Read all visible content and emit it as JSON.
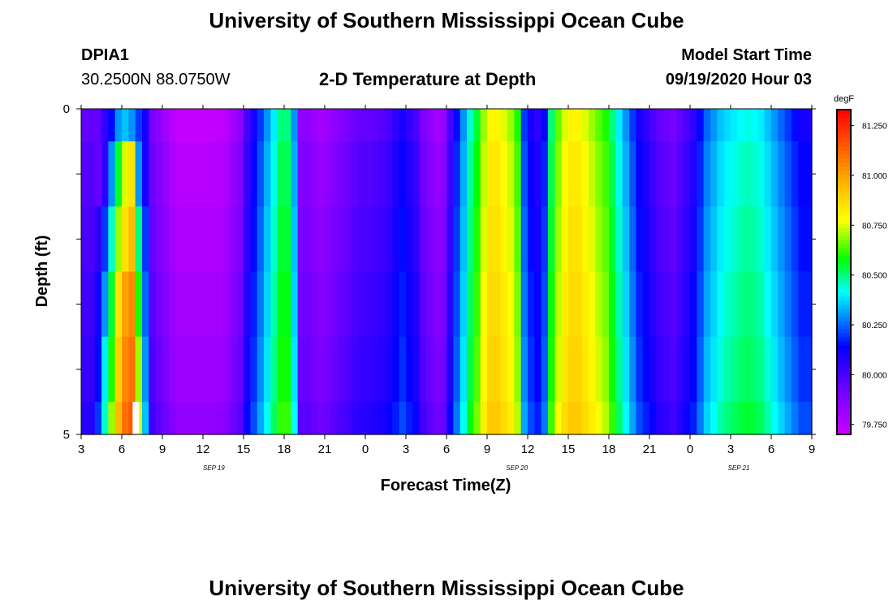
{
  "page_title": "University of Southern Mississippi Ocean Cube",
  "footer_title": "University of Southern Mississippi Ocean Cube",
  "station": {
    "id": "DPIA1",
    "location": "30.2500N 88.0750W"
  },
  "plot_title": "2-D Temperature at Depth",
  "model": {
    "label": "Model Start Time",
    "value": "09/19/2020 Hour 03"
  },
  "chart_data": {
    "type": "heatmap",
    "title": "2-D Temperature at Depth",
    "xlabel": "Forecast Time(Z)",
    "ylabel": "Depth (ft)",
    "x_tick_labels": [
      "3",
      "6",
      "9",
      "12",
      "15",
      "18",
      "21",
      "0",
      "3",
      "6",
      "9",
      "12",
      "15",
      "18",
      "21",
      "0",
      "3",
      "6",
      "9"
    ],
    "x_hours": [
      0,
      3,
      6,
      9,
      12,
      15,
      18,
      21,
      24,
      27,
      30,
      33,
      36,
      39,
      42,
      45,
      48,
      51,
      54
    ],
    "date_labels": [
      {
        "text": "SEP 19",
        "hour": 9.8
      },
      {
        "text": "SEP 20",
        "hour": 32.2
      },
      {
        "text": "SEP 21",
        "hour": 48.6
      }
    ],
    "y_range": [
      0,
      5
    ],
    "y_tick_labels": [
      "0",
      "5"
    ],
    "depth_bands_ft": [
      0,
      0.5,
      1.5,
      2.5,
      3.5,
      4.5,
      5
    ],
    "colorbar": {
      "unit": "degF",
      "min": 79.7,
      "max": 81.33,
      "tick_values": [
        79.75,
        80.0,
        80.25,
        80.5,
        80.75,
        81.0,
        81.25
      ],
      "tick_labels": [
        "79.750",
        "80.000",
        "80.250",
        "80.500",
        "80.750",
        "81.000",
        "81.250"
      ]
    },
    "column_hours": [
      0,
      0.5,
      1,
      1.5,
      2,
      2.5,
      3,
      3.5,
      4,
      4.5,
      5,
      5.5,
      6,
      6.5,
      7,
      7.5,
      8,
      8.5,
      9,
      9.5,
      10,
      10.5,
      11,
      11.5,
      12,
      12.5,
      13,
      13.5,
      14,
      14.5,
      15,
      15.5,
      16,
      16.5,
      17,
      17.5,
      18,
      18.5,
      19,
      19.5,
      20,
      20.5,
      21,
      21.5,
      22,
      22.5,
      23,
      23.5,
      24,
      24.5,
      25,
      25.5,
      26,
      26.5,
      27,
      27.5,
      28,
      28.5,
      29,
      29.5,
      30,
      30.5,
      31,
      31.5,
      32,
      32.5,
      33,
      33.5,
      34,
      34.5,
      35,
      35.5,
      36,
      36.5,
      37,
      37.5,
      38,
      38.5,
      39,
      39.5,
      40,
      40.5,
      41,
      41.5,
      42,
      42.5,
      43,
      43.5,
      44,
      44.5,
      45,
      45.5,
      46,
      46.5,
      47,
      47.5,
      48,
      48.5,
      49,
      49.5,
      50,
      50.5,
      51,
      51.5,
      52,
      52.5,
      53,
      53.5
    ],
    "surface_temperature_degF": [
      79.95,
      79.95,
      80.0,
      80.1,
      80.2,
      80.25,
      80.4,
      80.2,
      80.05,
      80.05,
      79.9,
      79.85,
      79.8,
      79.75,
      79.72,
      79.72,
      79.72,
      79.72,
      79.72,
      79.72,
      79.73,
      79.75,
      79.8,
      79.85,
      80.0,
      80.1,
      80.2,
      80.3,
      80.4,
      80.5,
      80.5,
      80.3,
      79.85,
      79.85,
      79.82,
      79.8,
      79.82,
      79.85,
      79.88,
      79.9,
      79.93,
      79.95,
      79.95,
      79.96,
      79.98,
      80.0,
      80.05,
      80.1,
      80.05,
      80.0,
      79.9,
      79.85,
      79.8,
      79.82,
      80.0,
      80.15,
      80.3,
      80.45,
      80.55,
      80.7,
      80.8,
      80.8,
      80.75,
      80.7,
      80.6,
      80.2,
      80.1,
      80.05,
      80.15,
      80.5,
      80.65,
      80.75,
      80.8,
      80.8,
      80.75,
      80.7,
      80.65,
      80.6,
      80.5,
      80.4,
      80.3,
      80.2,
      80.1,
      80.05,
      80.0,
      79.95,
      79.93,
      79.9,
      79.95,
      80.0,
      80.05,
      80.15,
      80.25,
      80.3,
      80.35,
      80.38,
      80.4,
      80.42,
      80.43,
      80.42,
      80.4,
      80.35,
      80.3,
      80.25,
      80.2,
      80.15,
      80.1,
      80.1
    ],
    "layer_offsets_degF": [
      0,
      0.03,
      0.05,
      0.07,
      0.09,
      0.12
    ],
    "early_profile_hours": [
      1.0,
      1.5,
      2.0,
      2.5,
      3.0,
      3.5,
      4.0,
      4.5
    ],
    "early_profile_degF": [
      [
        79.95,
        80.05,
        80.15,
        80.3,
        80.35,
        80.3,
        80.2,
        80.1
      ],
      [
        79.95,
        80.05,
        80.3,
        80.55,
        80.75,
        80.85,
        80.3,
        80.1
      ],
      [
        80.05,
        80.2,
        80.45,
        80.7,
        80.85,
        80.95,
        80.5,
        80.2
      ],
      [
        80.1,
        80.3,
        80.55,
        80.85,
        81.0,
        81.05,
        80.6,
        80.25
      ],
      [
        80.15,
        80.4,
        80.6,
        80.9,
        81.05,
        81.1,
        80.7,
        80.3
      ],
      [
        80.2,
        80.45,
        80.7,
        80.95,
        81.1,
        81.15,
        80.75,
        80.35
      ]
    ],
    "missing_cell": {
      "hour": 3.8,
      "depth_band_index": 5
    }
  }
}
